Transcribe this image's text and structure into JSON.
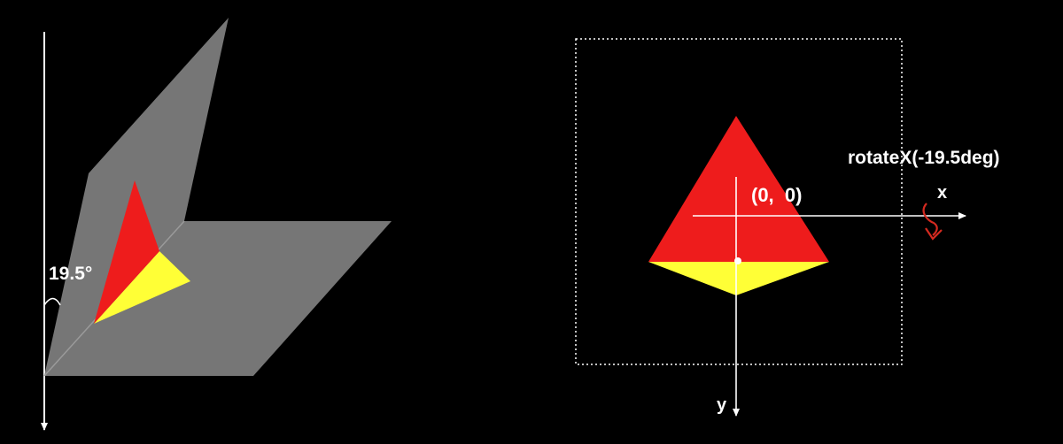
{
  "left_diagram": {
    "angle_label": "19.5°"
  },
  "right_diagram": {
    "transform_label": "rotateX(-19.5deg)",
    "origin_label": "(0,  0)",
    "x_axis_label": "x",
    "y_axis_label": "y"
  },
  "colors": {
    "background": "#000000",
    "plane_gray": "#767676",
    "face_red": "#ee1c1c",
    "face_yellow": "#ffff36",
    "axis_white": "#ffffff",
    "rotation_arrow": "#d42a20"
  },
  "icons": [
    "angle-arc-icon",
    "rotation-arrow-icon",
    "arrowhead-icon"
  ]
}
